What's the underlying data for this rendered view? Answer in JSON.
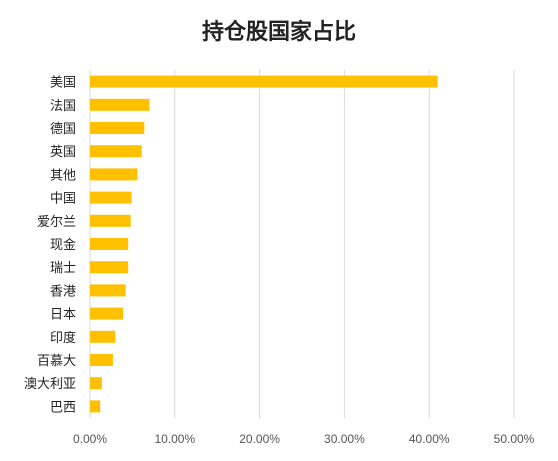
{
  "chart_data": {
    "type": "bar",
    "orientation": "horizontal",
    "title": "持仓股国家占比",
    "categories": [
      "美国",
      "法国",
      "德国",
      "英国",
      "其他",
      "中国",
      "爱尔兰",
      "现金",
      "瑞士",
      "香港",
      "日本",
      "印度",
      "百慕大",
      "澳大利亚",
      "巴西"
    ],
    "values": [
      41.0,
      7.0,
      6.4,
      6.1,
      5.6,
      4.9,
      4.8,
      4.5,
      4.5,
      4.2,
      3.9,
      3.0,
      2.7,
      1.4,
      1.2
    ],
    "value_unit": "%",
    "xlim": [
      0,
      50
    ],
    "x_ticks": [
      "0.00%",
      "10.00%",
      "20.00%",
      "30.00%",
      "40.00%",
      "50.00%"
    ],
    "grid": "vertical",
    "legend": "none",
    "colors": {
      "bar": "#FFC000",
      "grid": "#D9D9D9",
      "text": "#222222"
    }
  }
}
